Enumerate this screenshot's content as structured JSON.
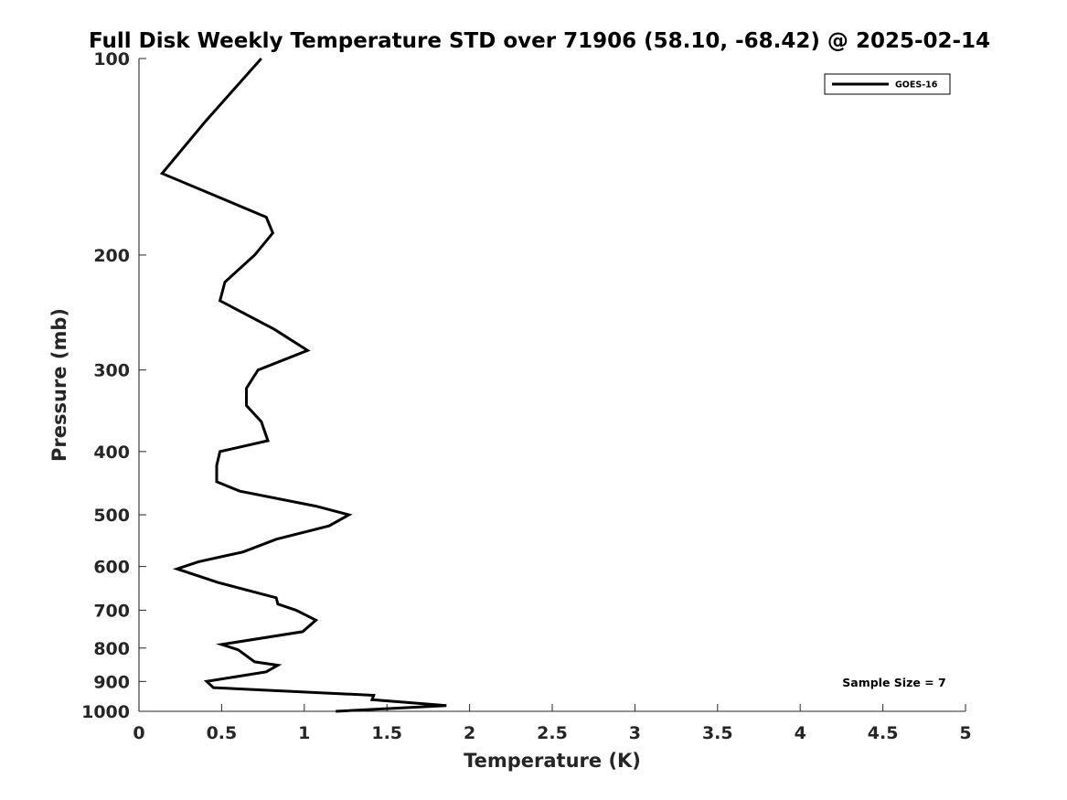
{
  "chart_data": {
    "type": "line",
    "title": "Full Disk Weekly Temperature STD over 71906 (58.10, -68.42) @ 2025-02-14",
    "xlabel": "Temperature (K)",
    "ylabel": "Pressure (mb)",
    "xlim": [
      0,
      5
    ],
    "ylim": [
      100,
      1000
    ],
    "y_scale": "log",
    "y_reversed": true,
    "x_ticks": [
      "0",
      "0.5",
      "1",
      "1.5",
      "2",
      "2.5",
      "3",
      "3.5",
      "4",
      "4.5",
      "5"
    ],
    "y_ticks": [
      "100",
      "200",
      "300",
      "400",
      "500",
      "600",
      "700",
      "800",
      "900",
      "1000"
    ],
    "grid": false,
    "legend_position": "top-right",
    "annotation": "Sample Size = 7",
    "colors": {
      "line": "#000000",
      "axis": "#262626",
      "background": "#ffffff"
    },
    "series": [
      {
        "name": "GOES-16",
        "x": [
          0.74,
          0.4,
          0.14,
          0.77,
          0.81,
          0.7,
          0.52,
          0.49,
          0.82,
          1.02,
          0.72,
          0.65,
          0.65,
          0.74,
          0.78,
          0.49,
          0.47,
          0.47,
          0.61,
          1.07,
          1.27,
          1.15,
          0.83,
          0.63,
          0.36,
          0.23,
          0.48,
          0.83,
          0.84,
          0.95,
          1.07,
          0.99,
          0.5,
          0.6,
          0.7,
          0.84,
          0.77,
          0.41,
          0.45,
          1.42,
          1.41,
          1.86,
          1.19
        ],
        "y": [
          100,
          125,
          150,
          175,
          185,
          200,
          220,
          235,
          260,
          280,
          300,
          320,
          340,
          360,
          385,
          400,
          420,
          445,
          460,
          485,
          500,
          520,
          545,
          570,
          590,
          605,
          635,
          670,
          685,
          700,
          725,
          755,
          790,
          805,
          840,
          850,
          870,
          900,
          920,
          945,
          960,
          980,
          1000
        ]
      }
    ]
  }
}
